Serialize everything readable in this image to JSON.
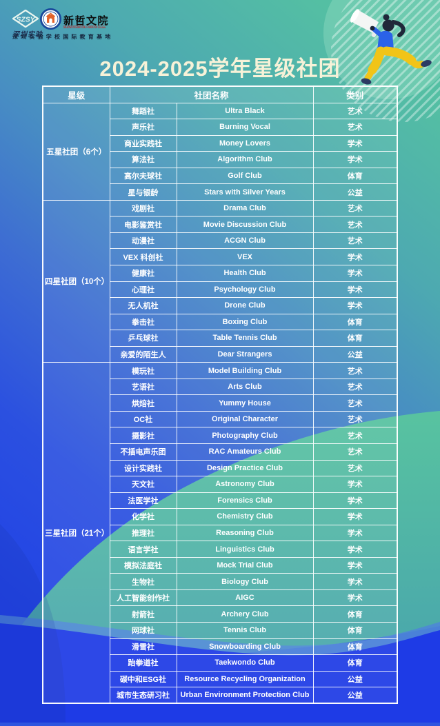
{
  "colors": {
    "teal_top": "#54bfa3",
    "blue_mid": "#3d6cd3",
    "blue_bottom": "#1e3be6",
    "teal_wave_top": "#58c3a0",
    "teal_wave_bottom": "#47a2ae",
    "title_text": "#f7f2d8",
    "table_border": "#ffffff",
    "person_shirt": "#2a62e8",
    "person_pants": "#f1c418",
    "person_shoes": "#2c3a63"
  },
  "header": {
    "logo_szsy": {
      "abbr": "SZSY",
      "script_name": "深圳实验"
    },
    "logo_xinzhe": {
      "name": "新哲文院",
      "subtitle": "SHENZHEN INTERNATIONAL FOUNDATION COLLEGE"
    },
    "caption": "深圳实验学校国际教育基地",
    "title": "2024-2025学年星级社团"
  },
  "table": {
    "columns": {
      "star": "星级",
      "club_name": "社团名称",
      "category": "类别"
    },
    "groups": [
      {
        "star": "五星社团（6个）",
        "clubs": [
          {
            "cn": "舞蹈社",
            "en": "Ultra Black",
            "category": "艺术"
          },
          {
            "cn": "声乐社",
            "en": "Burning Vocal",
            "category": "艺术"
          },
          {
            "cn": "商业实践社",
            "en": "Money Lovers",
            "category": "学术"
          },
          {
            "cn": "算法社",
            "en": "Algorithm Club",
            "category": "学术"
          },
          {
            "cn": "高尔夫球社",
            "en": "Golf Club",
            "category": "体育"
          },
          {
            "cn": "星与银龄",
            "en": "Stars with Silver Years",
            "category": "公益"
          }
        ]
      },
      {
        "star": "四星社团（10个）",
        "clubs": [
          {
            "cn": "戏剧社",
            "en": "Drama Club",
            "category": "艺术"
          },
          {
            "cn": "电影鉴赏社",
            "en": "Movie Discussion Club",
            "category": "艺术"
          },
          {
            "cn": "动漫社",
            "en": "ACGN Club",
            "category": "艺术"
          },
          {
            "cn": "VEX 科创社",
            "en": "VEX",
            "category": "学术"
          },
          {
            "cn": "健康社",
            "en": "Health Club",
            "category": "学术"
          },
          {
            "cn": "心理社",
            "en": "Psychology Club",
            "category": "学术"
          },
          {
            "cn": "无人机社",
            "en": "Drone Club",
            "category": "学术"
          },
          {
            "cn": "拳击社",
            "en": "Boxing Club",
            "category": "体育"
          },
          {
            "cn": "乒乓球社",
            "en": "Table Tennis Club",
            "category": "体育"
          },
          {
            "cn": "亲爱的陌生人",
            "en": "Dear Strangers",
            "category": "公益"
          }
        ]
      },
      {
        "star": "三星社团（21个）",
        "clubs": [
          {
            "cn": "模玩社",
            "en": "Model Building Club",
            "category": "艺术"
          },
          {
            "cn": "艺语社",
            "en": "Arts Club",
            "category": "艺术"
          },
          {
            "cn": "烘焙社",
            "en": "Yummy House",
            "category": "艺术"
          },
          {
            "cn": "OC社",
            "en": "Original Character",
            "category": "艺术"
          },
          {
            "cn": "摄影社",
            "en": "Photography Club",
            "category": "艺术"
          },
          {
            "cn": "不插电声乐团",
            "en": "RAC Amateurs Club",
            "category": "艺术"
          },
          {
            "cn": "设计实践社",
            "en": "Design Practice Club",
            "category": "艺术"
          },
          {
            "cn": "天文社",
            "en": "Astronomy Club",
            "category": "学术"
          },
          {
            "cn": "法医学社",
            "en": "Forensics Club",
            "category": "学术"
          },
          {
            "cn": "化学社",
            "en": "Chemistry Club",
            "category": "学术"
          },
          {
            "cn": "推理社",
            "en": "Reasoning Club",
            "category": "学术"
          },
          {
            "cn": "语言学社",
            "en": "Linguistics Club",
            "category": "学术"
          },
          {
            "cn": "模拟法庭社",
            "en": "Mock Trial Club",
            "category": "学术"
          },
          {
            "cn": "生物社",
            "en": "Biology Club",
            "category": "学术"
          },
          {
            "cn": "人工智能创作社",
            "en": "AIGC",
            "category": "学术"
          },
          {
            "cn": "射箭社",
            "en": "Archery Club",
            "category": "体育"
          },
          {
            "cn": "网球社",
            "en": "Tennis Club",
            "category": "体育"
          },
          {
            "cn": "滑雪社",
            "en": "Snowboarding Club",
            "category": "体育"
          },
          {
            "cn": "跆拳道社",
            "en": "Taekwondo Club",
            "category": "体育"
          },
          {
            "cn": "碳中和ESG社",
            "en": "Resource Recycling Organization",
            "category": "公益"
          },
          {
            "cn": "城市生态研习社",
            "en": "Urban Environment Protection Club",
            "category": "公益"
          }
        ]
      }
    ]
  }
}
